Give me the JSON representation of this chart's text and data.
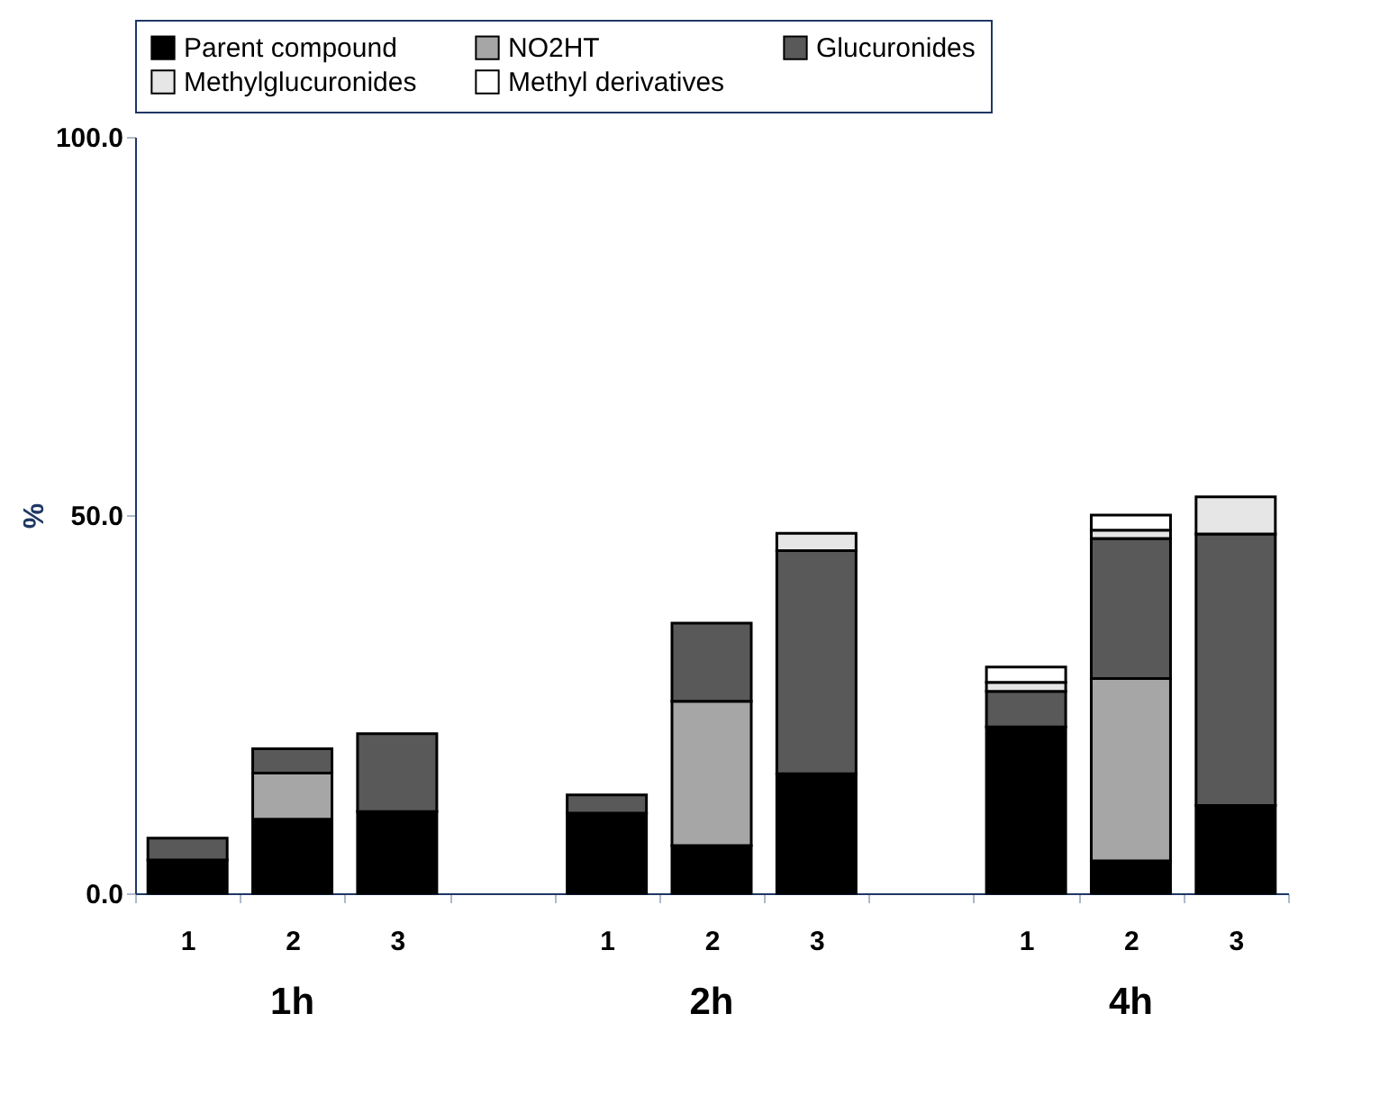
{
  "chart_data": {
    "type": "bar",
    "stacked": true,
    "ylabel": "%",
    "categories": [
      "1",
      "2",
      "3",
      null,
      "1",
      "2",
      "3",
      null,
      "1",
      "2",
      "3"
    ],
    "series": [
      {
        "name": "Parent compound",
        "color": "#000000",
        "values": [
          4.4,
          9.8,
          10.8,
          null,
          10.6,
          6.3,
          15.8,
          null,
          22.0,
          4.3,
          11.6
        ]
      },
      {
        "name": "NO2HT",
        "color": "#a6a6a6",
        "values": [
          null,
          6.1,
          null,
          null,
          null,
          19.1,
          null,
          null,
          null,
          24.1,
          null
        ]
      },
      {
        "name": "Glucuronides",
        "color": "#595959",
        "values": [
          2.9,
          3.2,
          10.3,
          null,
          2.4,
          10.3,
          29.5,
          null,
          4.7,
          18.5,
          35.9
        ]
      },
      {
        "name": "Methylglucuronides",
        "color": "#e6e6e6",
        "values": [
          null,
          null,
          null,
          null,
          null,
          null,
          2.3,
          null,
          1.2,
          1.1,
          4.9
        ]
      },
      {
        "name": "Methyl derivatives",
        "color": "#ffffff",
        "values": [
          null,
          null,
          null,
          null,
          null,
          null,
          null,
          null,
          2.0,
          2.0,
          null
        ]
      }
    ],
    "ylim": [
      0,
      100
    ],
    "yticks": [
      {
        "value": 0,
        "label": "0.0"
      },
      {
        "value": 50,
        "label": "50.0"
      },
      {
        "value": 100,
        "label": "100.0"
      }
    ],
    "annotations": [
      "1h",
      "2h",
      "4h"
    ],
    "grid": false,
    "legend": "top"
  }
}
